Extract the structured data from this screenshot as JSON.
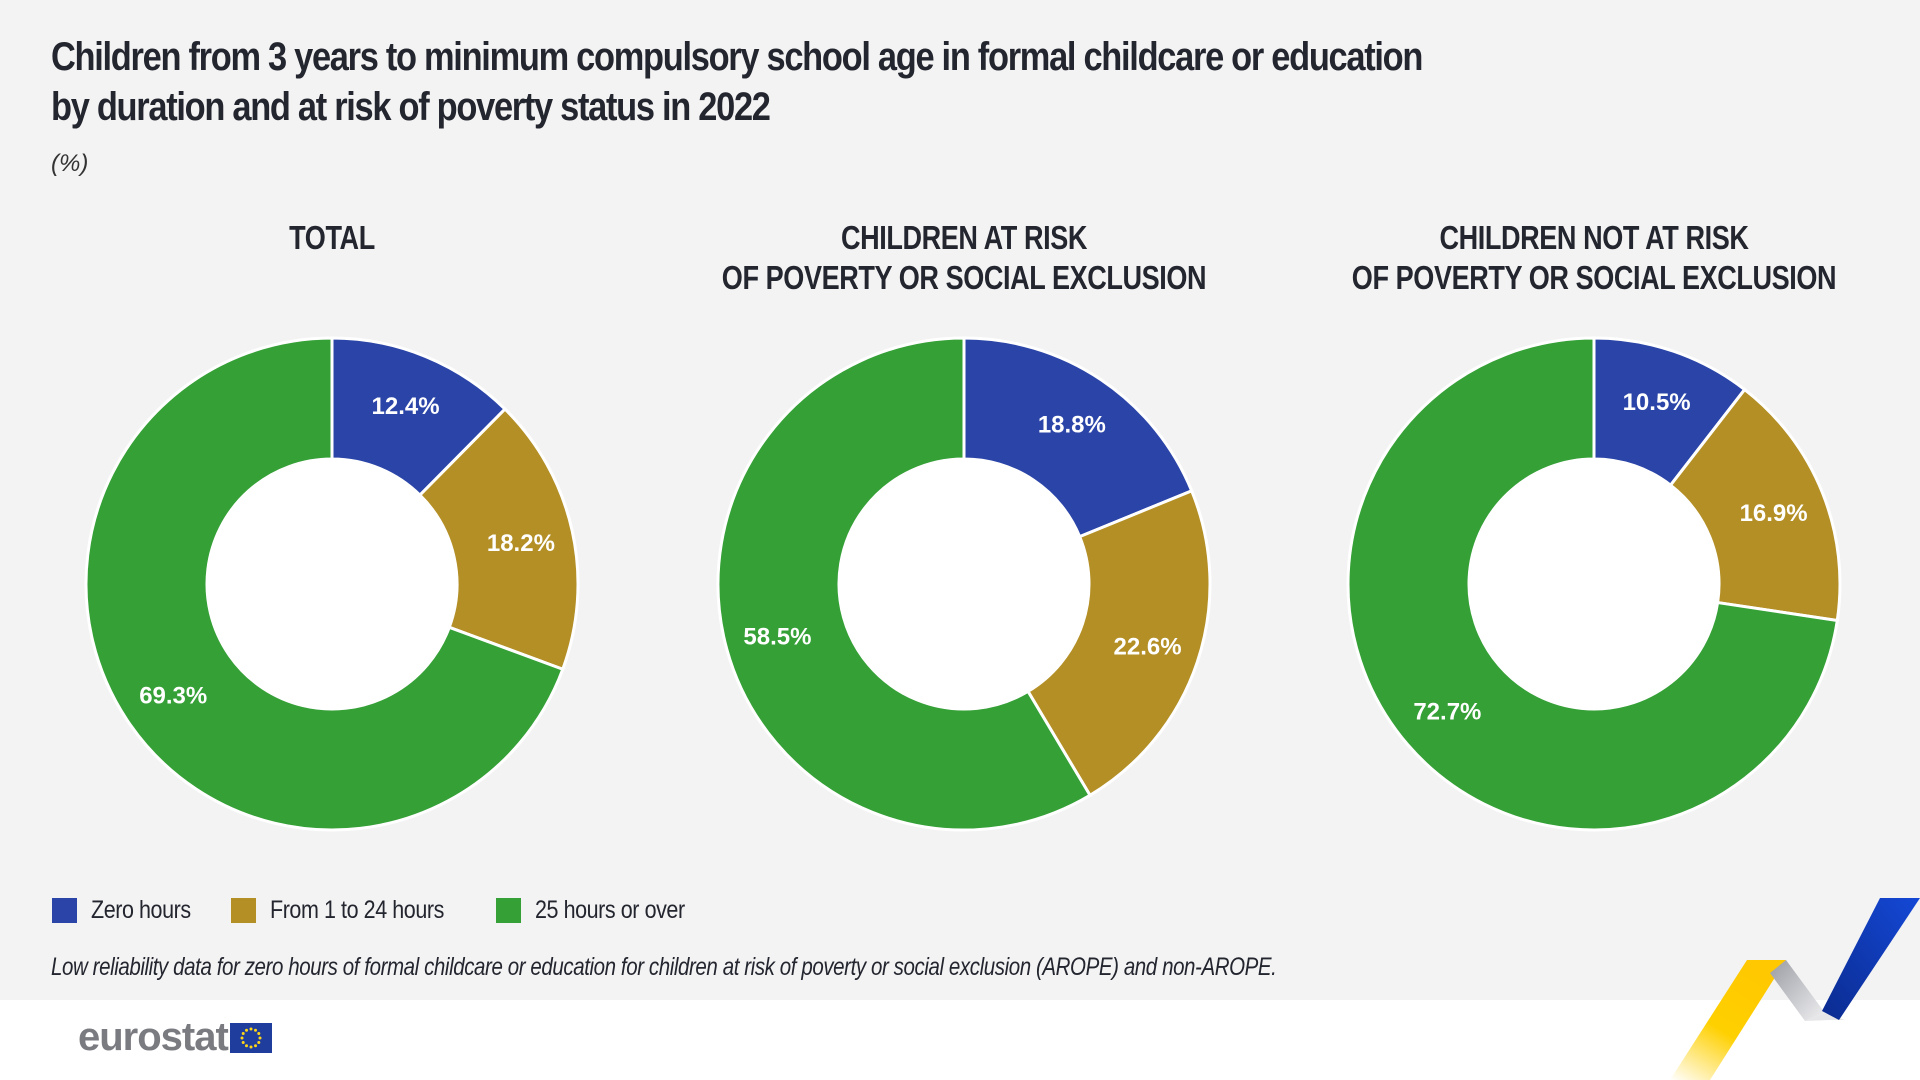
{
  "title_line1": "Children from 3 years to minimum compulsory school age in formal childcare or education",
  "title_line2": "by duration and at risk of poverty status in 2022",
  "unit": "(%)",
  "colors": {
    "zero": "#2a44a8",
    "low": "#b38f26",
    "high": "#34a036",
    "text": "#23252f",
    "background": "#f3f3f3"
  },
  "legend": [
    {
      "label": "Zero hours",
      "color": "#2a44a8"
    },
    {
      "label": "From 1 to 24 hours",
      "color": "#b38f26"
    },
    {
      "label": "25 hours or over",
      "color": "#34a036"
    }
  ],
  "note": "Low reliability data for zero hours of formal childcare or education for children at risk of poverty or social exclusion (AROPE) and non-AROPE.",
  "logo_text": "eurostat",
  "chart_data": [
    {
      "type": "pie",
      "variant": "donut",
      "title_line1": "TOTAL",
      "title_line2": "",
      "categories": [
        "Zero hours",
        "From 1 to 24 hours",
        "25 hours or over"
      ],
      "values": [
        12.4,
        18.2,
        69.3
      ],
      "labels": [
        "12.4%",
        "18.2%",
        "69.3%"
      ]
    },
    {
      "type": "pie",
      "variant": "donut",
      "title_line1": "CHILDREN AT RISK",
      "title_line2": "OF POVERTY OR SOCIAL EXCLUSION",
      "categories": [
        "Zero hours",
        "From 1 to 24 hours",
        "25 hours or over"
      ],
      "values": [
        18.8,
        22.6,
        58.5
      ],
      "labels": [
        "18.8%",
        "22.6%",
        "58.5%"
      ]
    },
    {
      "type": "pie",
      "variant": "donut",
      "title_line1": "CHILDREN NOT AT RISK",
      "title_line2": "OF POVERTY OR SOCIAL EXCLUSION",
      "categories": [
        "Zero hours",
        "From 1 to 24 hours",
        "25 hours or over"
      ],
      "values": [
        10.5,
        16.9,
        72.7
      ],
      "labels": [
        "10.5%",
        "16.9%",
        "72.7%"
      ]
    }
  ]
}
